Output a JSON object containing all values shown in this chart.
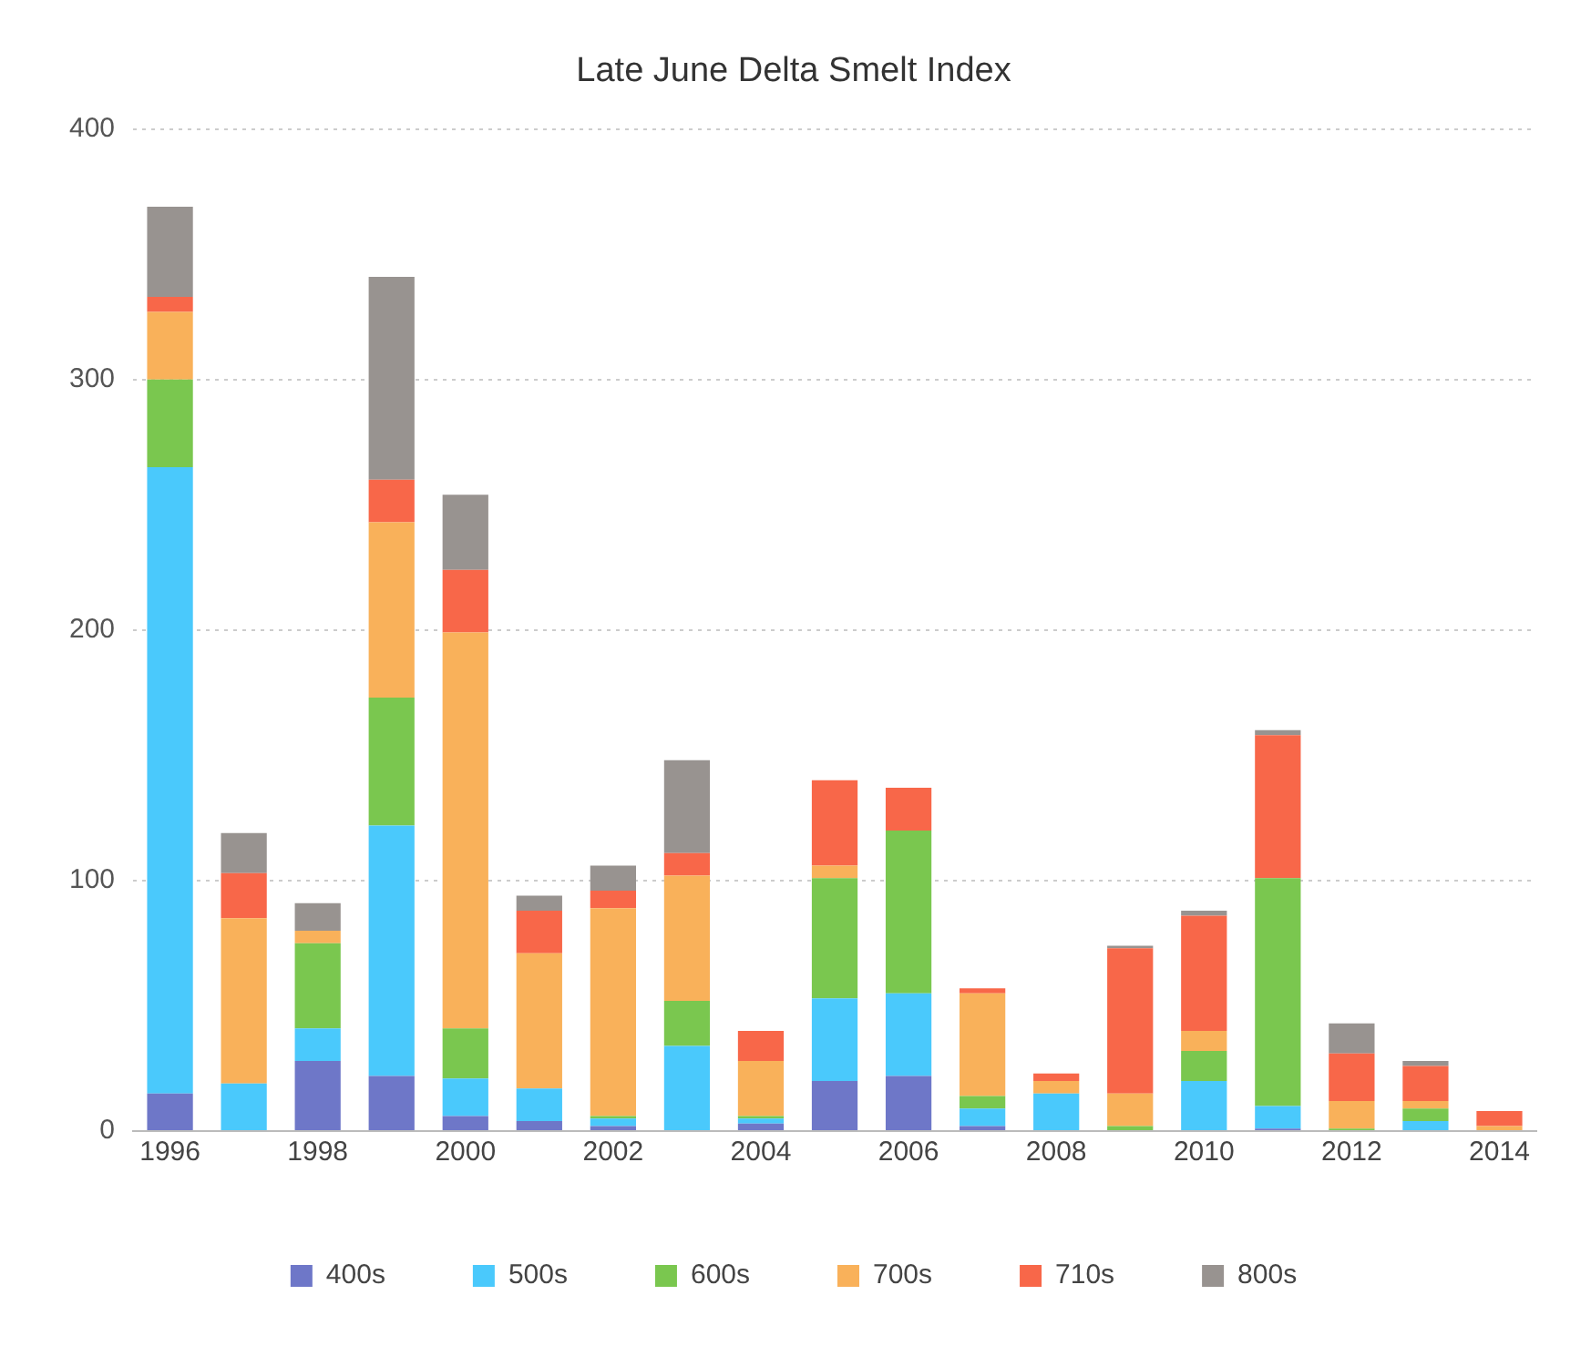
{
  "chart_data": {
    "type": "bar",
    "title": "Late June Delta Smelt Index",
    "stacked": true,
    "grid": "y",
    "legend": "bottom",
    "categories": [
      "1996",
      null,
      "1998",
      null,
      "2000",
      null,
      "2002",
      null,
      "2004",
      null,
      "2006",
      null,
      "2008",
      null,
      "2010",
      null,
      "2012",
      null,
      "2014"
    ],
    "ylim": [
      0,
      400
    ],
    "yticks": [
      0,
      100,
      200,
      300,
      400
    ],
    "series": [
      {
        "name": "400s",
        "color": "#6e77c8",
        "values": [
          15,
          0,
          28,
          22,
          6,
          4,
          2,
          0,
          3,
          20,
          22,
          2,
          0,
          0,
          0,
          1,
          0,
          0,
          0
        ]
      },
      {
        "name": "500s",
        "color": "#4ac9fc",
        "values": [
          250,
          19,
          13,
          100,
          15,
          13,
          3,
          34,
          2,
          33,
          33,
          7,
          15,
          0,
          20,
          9,
          0,
          4,
          0
        ]
      },
      {
        "name": "600s",
        "color": "#7ac74f",
        "values": [
          35,
          0,
          34,
          51,
          20,
          0,
          1,
          18,
          1,
          48,
          65,
          5,
          0,
          2,
          12,
          91,
          1,
          5,
          0
        ]
      },
      {
        "name": "700s",
        "color": "#f9b15a",
        "values": [
          27,
          66,
          5,
          70,
          158,
          54,
          83,
          50,
          22,
          5,
          0,
          41,
          5,
          13,
          8,
          0,
          11,
          3,
          2
        ]
      },
      {
        "name": "710s",
        "color": "#f86749",
        "values": [
          6,
          18,
          0,
          17,
          25,
          17,
          7,
          9,
          12,
          34,
          17,
          2,
          3,
          58,
          46,
          57,
          19,
          14,
          6
        ]
      },
      {
        "name": "800s",
        "color": "#989390",
        "values": [
          36,
          16,
          11,
          81,
          30,
          6,
          10,
          37,
          0,
          0,
          0,
          0,
          0,
          1,
          2,
          2,
          12,
          2,
          0
        ]
      }
    ]
  }
}
